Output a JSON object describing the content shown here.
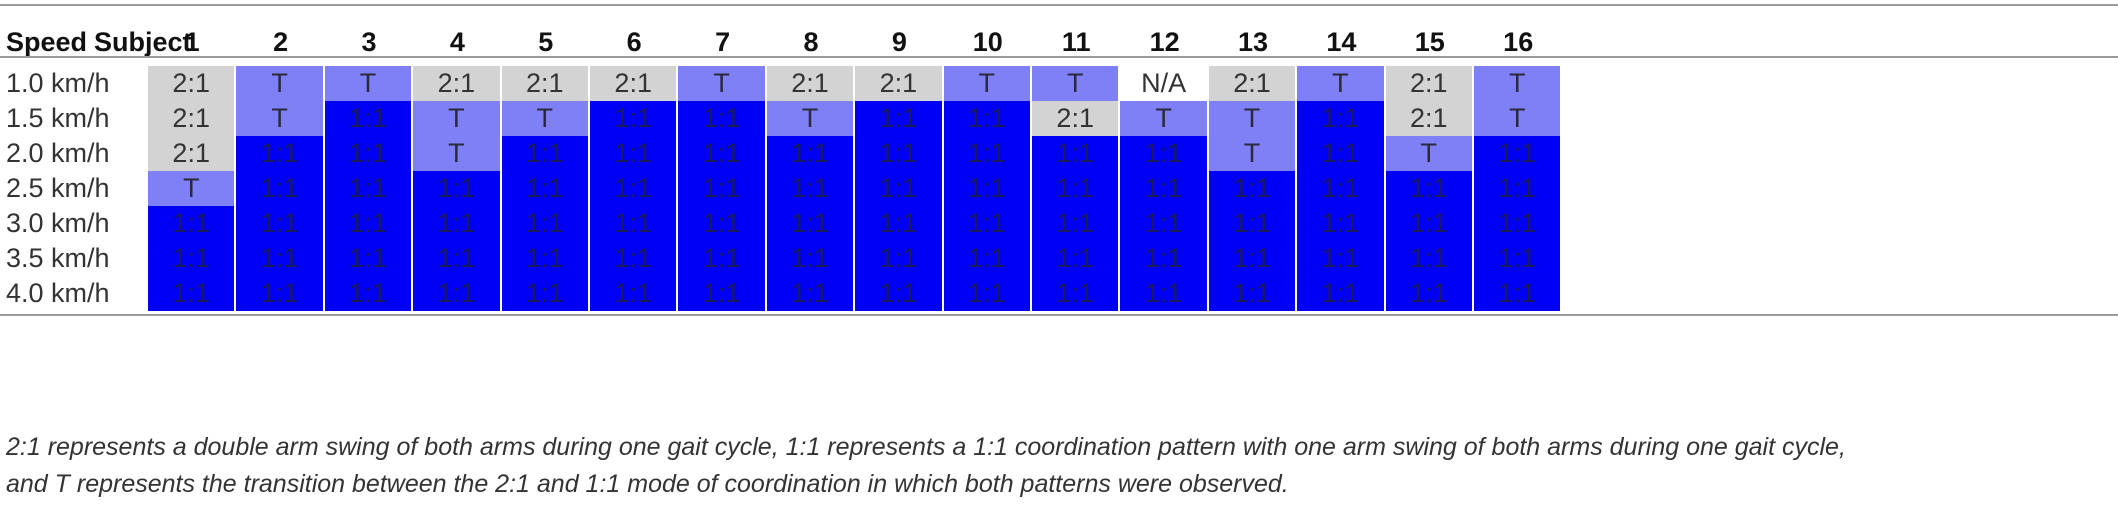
{
  "table": {
    "header_speed": "Speed",
    "header_subject": "Subject",
    "subjects": [
      "1",
      "2",
      "3",
      "4",
      "5",
      "6",
      "7",
      "8",
      "9",
      "10",
      "11",
      "12",
      "13",
      "14",
      "15",
      "16"
    ],
    "rows": [
      {
        "speed": "1.0 km/h",
        "cells": [
          "2:1",
          "T",
          "T",
          "2:1",
          "2:1",
          "2:1",
          "T",
          "2:1",
          "2:1",
          "T",
          "T",
          "N/A",
          "2:1",
          "T",
          "2:1",
          "T"
        ]
      },
      {
        "speed": "1.5 km/h",
        "cells": [
          "2:1",
          "T",
          "1:1",
          "T",
          "T",
          "1:1",
          "1:1",
          "T",
          "1:1",
          "1:1",
          "2:1",
          "T",
          "T",
          "1:1",
          "2:1",
          "T"
        ]
      },
      {
        "speed": "2.0 km/h",
        "cells": [
          "2:1",
          "1:1",
          "1:1",
          "T",
          "1:1",
          "1:1",
          "1:1",
          "1:1",
          "1:1",
          "1:1",
          "1:1",
          "1:1",
          "T",
          "1:1",
          "T",
          "1:1"
        ]
      },
      {
        "speed": "2.5 km/h",
        "cells": [
          "T",
          "1:1",
          "1:1",
          "1:1",
          "1:1",
          "1:1",
          "1:1",
          "1:1",
          "1:1",
          "1:1",
          "1:1",
          "1:1",
          "1:1",
          "1:1",
          "1:1",
          "1:1"
        ]
      },
      {
        "speed": "3.0 km/h",
        "cells": [
          "1:1",
          "1:1",
          "1:1",
          "1:1",
          "1:1",
          "1:1",
          "1:1",
          "1:1",
          "1:1",
          "1:1",
          "1:1",
          "1:1",
          "1:1",
          "1:1",
          "1:1",
          "1:1"
        ]
      },
      {
        "speed": "3.5 km/h",
        "cells": [
          "1:1",
          "1:1",
          "1:1",
          "1:1",
          "1:1",
          "1:1",
          "1:1",
          "1:1",
          "1:1",
          "1:1",
          "1:1",
          "1:1",
          "1:1",
          "1:1",
          "1:1",
          "1:1"
        ]
      },
      {
        "speed": "4.0 km/h",
        "cells": [
          "1:1",
          "1:1",
          "1:1",
          "1:1",
          "1:1",
          "1:1",
          "1:1",
          "1:1",
          "1:1",
          "1:1",
          "1:1",
          "1:1",
          "1:1",
          "1:1",
          "1:1",
          "1:1"
        ]
      }
    ]
  },
  "colors": {
    "two_to_one": "#d3d3d3",
    "transition": "#7f7ff6",
    "one_to_one": "#0000f5",
    "na": "#ffffff"
  },
  "caption": {
    "line1": "2:1 represents a double arm swing of both arms during one gait cycle, 1:1 represents a 1:1 coordination pattern with one arm swing of both arms during one gait cycle,",
    "line2": "and T represents the transition between the 2:1 and 1:1 mode of coordination in which both patterns were observed."
  }
}
